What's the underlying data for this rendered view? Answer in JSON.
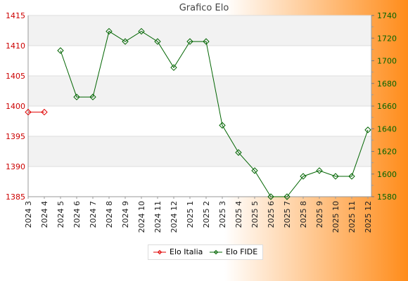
{
  "chart_data": {
    "type": "line",
    "title": "Grafico Elo",
    "categories": [
      "2024 3",
      "2024 4",
      "2024 5",
      "2024 6",
      "2024 7",
      "2024 8",
      "2024 9",
      "2024 10",
      "2024 11",
      "2024 12",
      "2025 1",
      "2025 2",
      "2025 3",
      "2025 4",
      "2025 5",
      "2025 6",
      "2025 7",
      "2025 8",
      "2025 9",
      "2025 10",
      "2025 11",
      "2025 12"
    ],
    "series": [
      {
        "name": "Elo Italia",
        "axis": "left",
        "color": "#e00000",
        "values": [
          1399,
          1399,
          null,
          null,
          null,
          null,
          null,
          null,
          null,
          null,
          null,
          null,
          null,
          null,
          null,
          null,
          null,
          null,
          null,
          null,
          null,
          null
        ]
      },
      {
        "name": "Elo FIDE",
        "axis": "right",
        "color": "#006400",
        "values": [
          null,
          null,
          1709,
          1668,
          1668,
          1726,
          1717,
          1726,
          1717,
          1694,
          1717,
          1717,
          1643,
          1619,
          1603,
          1580,
          1580,
          1598,
          1603,
          1598,
          1598,
          1639
        ]
      }
    ],
    "y_left": {
      "ylim": [
        1385,
        1415
      ],
      "ticks": [
        1385,
        1390,
        1395,
        1400,
        1405,
        1410,
        1415
      ],
      "color": "#cc0000"
    },
    "y_right": {
      "ylim": [
        1580,
        1740
      ],
      "ticks": [
        1580,
        1600,
        1620,
        1640,
        1660,
        1680,
        1700,
        1720,
        1740
      ],
      "color": "#006400"
    },
    "grid": true,
    "legend": "bottom-center"
  }
}
